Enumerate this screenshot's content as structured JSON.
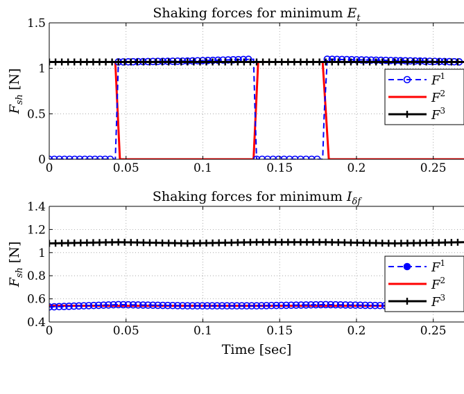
{
  "chart_data": [
    {
      "type": "line",
      "title": "Shaking forces for minimum E_t",
      "title_parts": {
        "prefix": "Shaking forces for minimum ",
        "symbol": "E",
        "subscript": "t"
      },
      "xlabel": "",
      "ylabel": "F_sh [N]",
      "ylabel_parts": {
        "symbol": "F",
        "subscript": "sh",
        "unit": " [N]"
      },
      "xlim": [
        0,
        0.27
      ],
      "ylim": [
        0,
        1.5
      ],
      "xticks": [
        0,
        0.05,
        0.1,
        0.15,
        0.2,
        0.25
      ],
      "xtick_labels": [
        "0",
        "0.05",
        "0.1",
        "0.15",
        "0.2",
        "0.25"
      ],
      "yticks": [
        0,
        0.5,
        1,
        1.5
      ],
      "ytick_labels": [
        "0",
        "0.5",
        "1",
        "1.5"
      ],
      "grid": true,
      "legend_position": "right",
      "series": [
        {
          "name": "F^1",
          "label": "F",
          "superscript": "1",
          "color": "#0000ff",
          "style": "dashed",
          "marker": "circle",
          "x": [
            0,
            0.043,
            0.044,
            0.045,
            0.09,
            0.133,
            0.134,
            0.135,
            0.16,
            0.178,
            0.179,
            0.181,
            0.27
          ],
          "y": [
            0,
            0,
            0.5,
            1.07,
            1.08,
            1.1,
            0.5,
            0,
            0,
            0,
            0.5,
            1.1,
            1.07
          ]
        },
        {
          "name": "F^2",
          "label": "F",
          "superscript": "2",
          "color": "#ff0000",
          "style": "solid",
          "marker": "none",
          "x": [
            0,
            0.043,
            0.046,
            0.09,
            0.133,
            0.136,
            0.16,
            0.178,
            0.182,
            0.27
          ],
          "y": [
            1.07,
            1.07,
            0,
            0,
            0,
            1.07,
            1.07,
            1.07,
            0,
            0
          ]
        },
        {
          "name": "F^3",
          "label": "F",
          "superscript": "3",
          "color": "#000000",
          "style": "solid",
          "marker": "plus",
          "x": [
            0,
            0.045,
            0.09,
            0.135,
            0.18,
            0.225,
            0.27
          ],
          "y": [
            1.07,
            1.07,
            1.07,
            1.07,
            1.07,
            1.07,
            1.07
          ]
        }
      ]
    },
    {
      "type": "line",
      "title": "Shaking forces for minimum I_δf",
      "title_parts": {
        "prefix": "Shaking forces for minimum ",
        "symbol": "I",
        "subscript": "δf"
      },
      "xlabel": "Time [sec]",
      "ylabel": "F_sh [N]",
      "ylabel_parts": {
        "symbol": "F",
        "subscript": "sh",
        "unit": " [N]"
      },
      "xlim": [
        0,
        0.27
      ],
      "ylim": [
        0.4,
        1.4
      ],
      "xticks": [
        0,
        0.05,
        0.1,
        0.15,
        0.2,
        0.25
      ],
      "xtick_labels": [
        "0",
        "0.05",
        "0.1",
        "0.15",
        "0.2",
        "0.25"
      ],
      "yticks": [
        0.4,
        0.6,
        0.8,
        1,
        1.2,
        1.4
      ],
      "ytick_labels": [
        "0.4",
        "0.6",
        "0.8",
        "1",
        "1.2",
        "1.4"
      ],
      "grid": true,
      "legend_position": "right",
      "series": [
        {
          "name": "F^1",
          "label": "F",
          "superscript": "1",
          "color": "#0000ff",
          "style": "dashed",
          "marker": "circle",
          "x": [
            0,
            0.045,
            0.09,
            0.135,
            0.18,
            0.225,
            0.27
          ],
          "y": [
            0.53,
            0.55,
            0.54,
            0.54,
            0.55,
            0.54,
            0.53
          ]
        },
        {
          "name": "F^2",
          "label": "F",
          "superscript": "2",
          "color": "#ff0000",
          "style": "solid",
          "marker": "none",
          "x": [
            0,
            0.09,
            0.18,
            0.27
          ],
          "y": [
            0.54,
            0.54,
            0.54,
            0.54
          ]
        },
        {
          "name": "F^3",
          "label": "F",
          "superscript": "3",
          "color": "#000000",
          "style": "solid",
          "marker": "plus",
          "x": [
            0,
            0.045,
            0.09,
            0.135,
            0.18,
            0.225,
            0.27
          ],
          "y": [
            1.08,
            1.09,
            1.08,
            1.09,
            1.09,
            1.08,
            1.09
          ]
        }
      ]
    }
  ]
}
